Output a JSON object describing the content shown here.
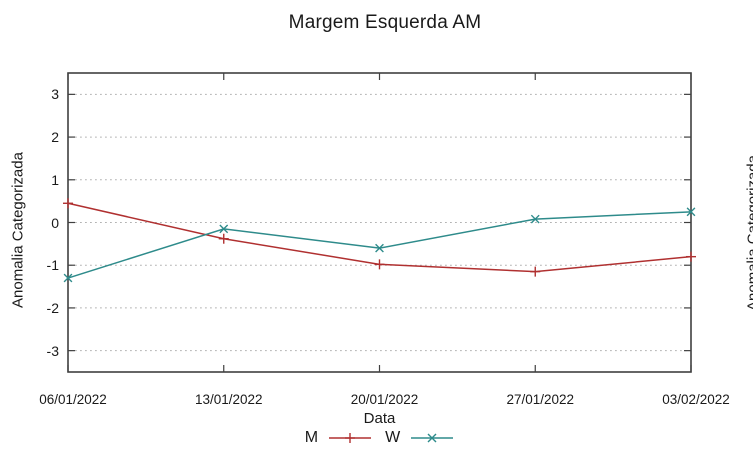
{
  "title": "Margem Esquerda AM",
  "chart_data": {
    "type": "line",
    "title": "Margem Esquerda AM",
    "xlabel": "Data",
    "ylabel": "Anomalia Categorizada",
    "x_tick_labels": [
      "06/01/2022",
      "13/01/2022",
      "20/01/2022",
      "27/01/2022",
      "03/02/2022"
    ],
    "y_ticks": [
      3,
      2,
      1,
      0,
      -1,
      -2,
      -3
    ],
    "ylim": [
      -3.5,
      3.5
    ],
    "grid": true,
    "grid_style": "dotted-horizontal",
    "legend_position": "bottom-center",
    "frame_color": "#404040",
    "grid_color": "#b3b3b3",
    "series": [
      {
        "name": "M",
        "color": "#b03030",
        "marker": "plus",
        "values": [
          0.45,
          -0.38,
          -0.98,
          -1.15,
          -0.8
        ]
      },
      {
        "name": "W",
        "color": "#2e8b8b",
        "marker": "cross",
        "values": [
          -1.3,
          -0.15,
          -0.6,
          0.08,
          0.25
        ]
      }
    ]
  },
  "adjacent_chart": {
    "ylabel_partial": "Anomalia Categorizada"
  }
}
